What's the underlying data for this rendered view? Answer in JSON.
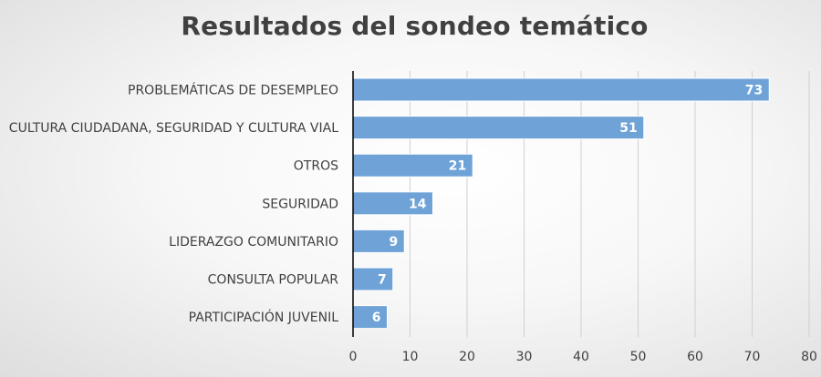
{
  "chart_data": {
    "type": "bar",
    "orientation": "horizontal",
    "title": "Resultados del sondeo temático",
    "categories": [
      "PROBLEMÁTICAS DE DESEMPLEO",
      "CULTURA CIUDADANA, SEGURIDAD Y CULTURA VIAL",
      "OTROS",
      "SEGURIDAD",
      "LIDERAZGO COMUNITARIO",
      "CONSULTA POPULAR",
      "PARTICIPACIÓN JUVENIL"
    ],
    "values": [
      73,
      51,
      21,
      14,
      9,
      7,
      6
    ],
    "data_labels": [
      "73",
      "51",
      "21",
      "14",
      "9",
      "7",
      "6"
    ],
    "xlim": [
      0,
      80
    ],
    "x_ticks": [
      "0",
      "10",
      "20",
      "30",
      "40",
      "50",
      "60",
      "70",
      "80"
    ],
    "xlabel": "",
    "ylabel": "",
    "grid": "vertical",
    "legend": "none",
    "bar_color": "#6fa3d8",
    "bar_edge_color": "#ffffff",
    "grid_color": "#d0d0d0",
    "axis_color": "#000000",
    "text_color": "#404040"
  }
}
